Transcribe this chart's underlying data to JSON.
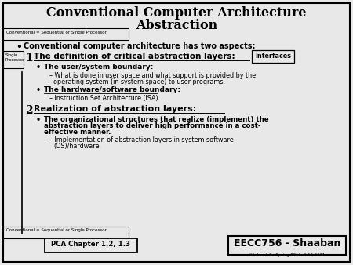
{
  "title_line1": "Conventional Computer Architecture",
  "title_line2": "Abstraction",
  "bg_color": "#e8e8e8",
  "border_color": "#000000",
  "text_color": "#000000",
  "bullet_main": "Conventional computer architecture has two aspects:",
  "num1": "1",
  "heading1": "The definition of critical abstraction layers:",
  "sub1a_label": "The user/system boundary:",
  "sub1a_text1": "What is done in user space and what support is provided by the",
  "sub1a_text2": "operating system (in system space) to user programs.",
  "sub1b_label": "The hardware/software boundary:",
  "sub1b_text": "Instruction Set Architecture (ISA).",
  "num2": "2",
  "heading2": "Realization of abstraction layers:",
  "sub2a_text1": "The organizational structures that realize (implement) the",
  "sub2a_text2": "abstraction layers to deliver high performance in a cost-",
  "sub2a_text3": "effective manner.",
  "sub2b_text1": "Implementation of abstraction layers in system software",
  "sub2b_text2": "(OS)/hardware.",
  "box_top_left": "Conventional = Sequential or Single Processor",
  "box_mid_left": "Single\nProcessor",
  "box_interfaces": "Interfaces",
  "box_bottom_left": "Conventional = Sequential or Single Processor",
  "box_pca": "PCA Chapter 1.2, 1.3",
  "box_eecc": "EECC756 - Shaaban",
  "footer_text": "#1  lec # 2   Spring 2011  3-10-2011"
}
